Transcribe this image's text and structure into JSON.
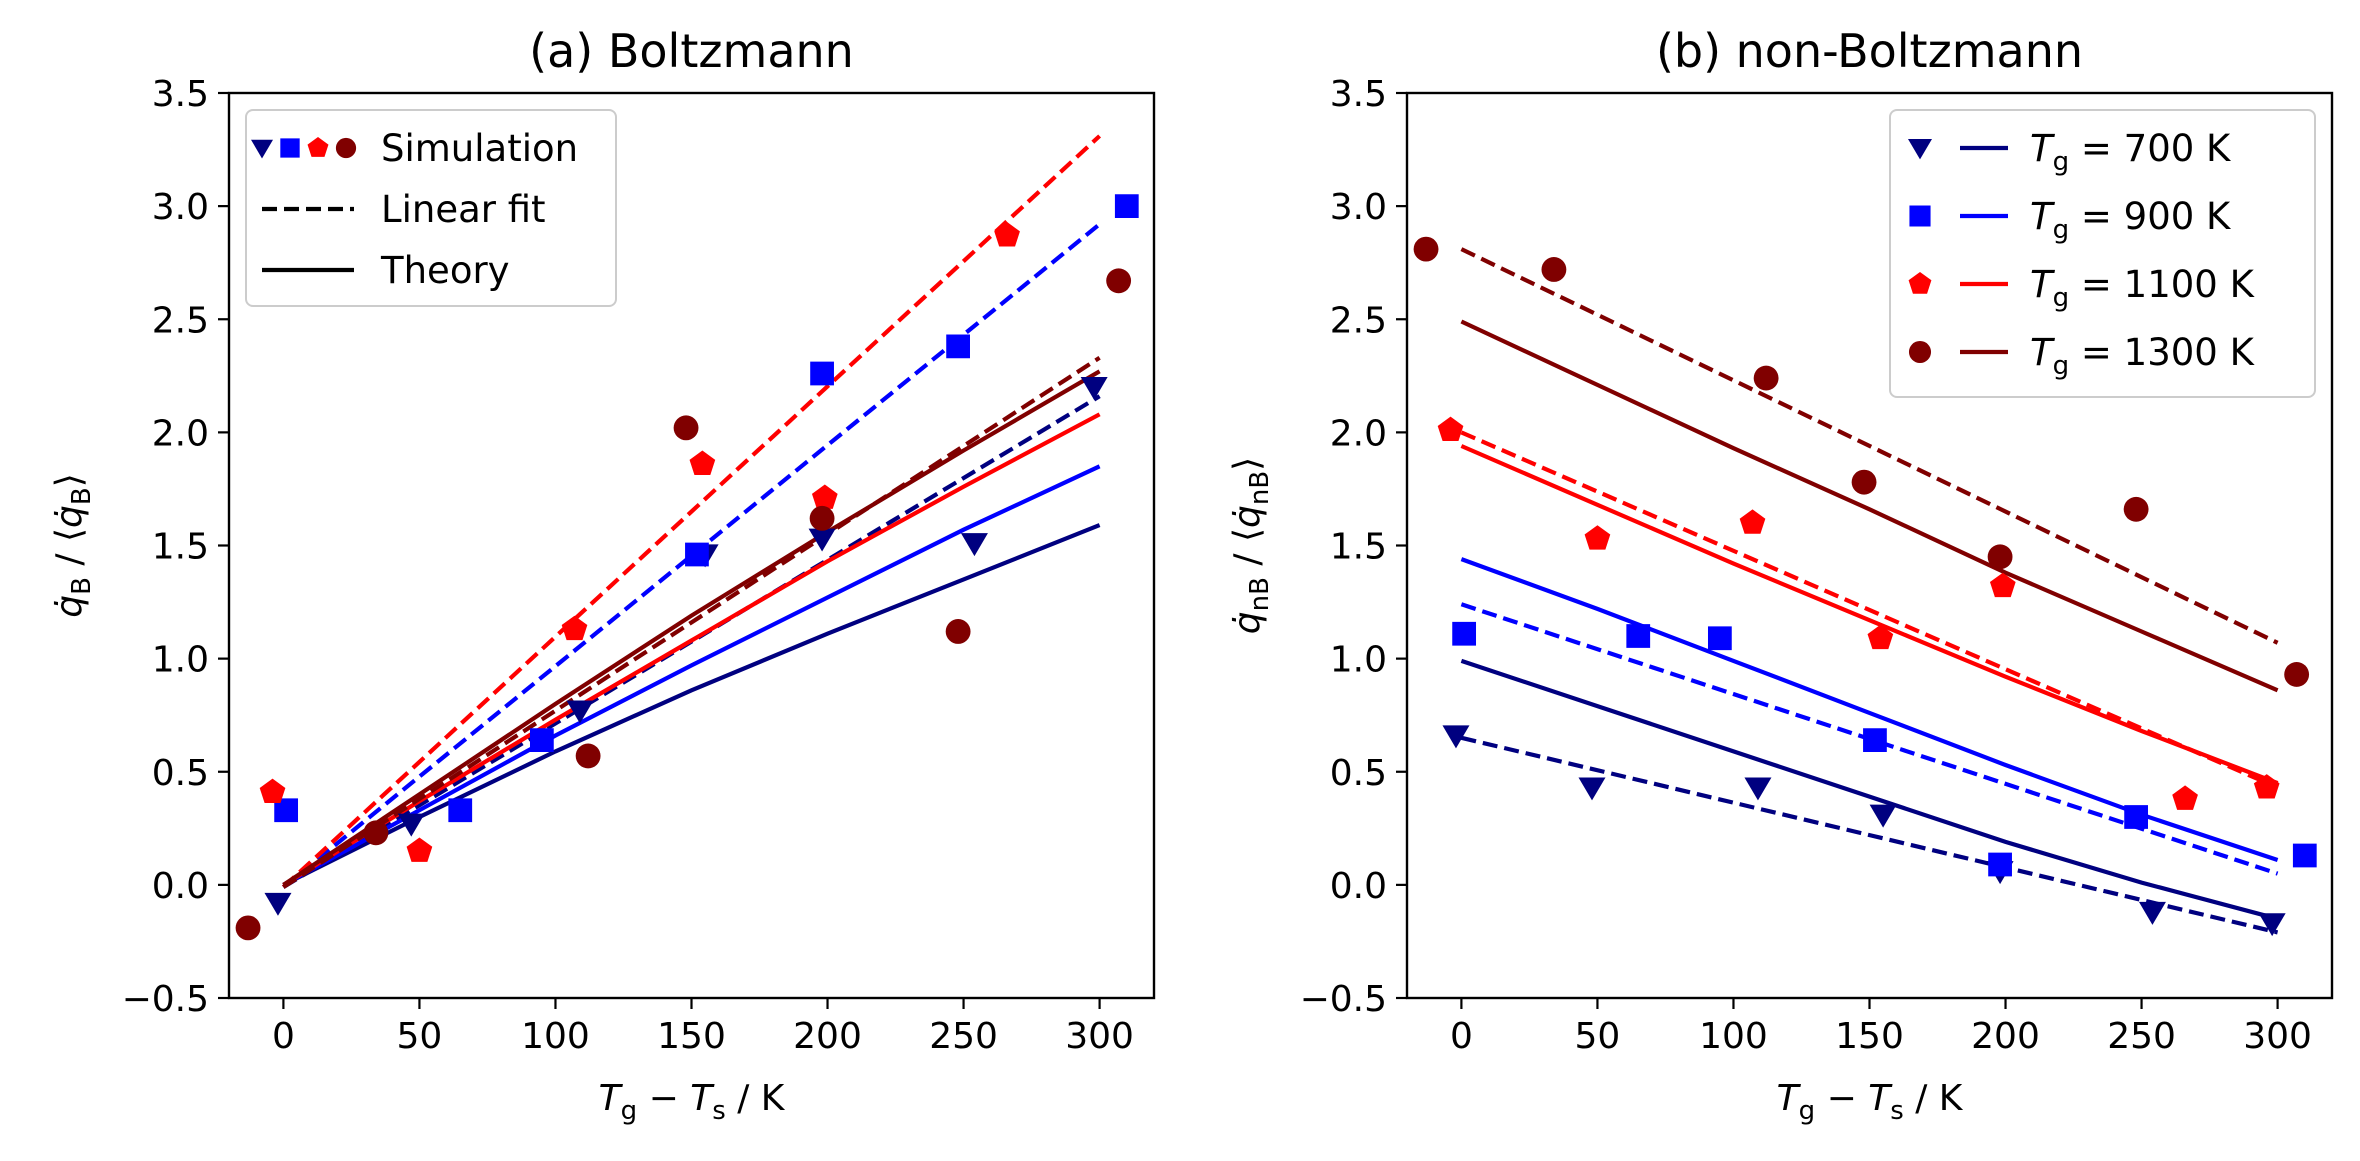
{
  "chart_data": [
    {
      "type": "scatter",
      "id": "boltzmann",
      "title": "(a) Boltzmann",
      "xlabel": "T_g − T_s / K",
      "xlabel_parts": {
        "main1": "T",
        "sub1": "g",
        "op": " − ",
        "main2": "T",
        "sub2": "s",
        "unit": " / K"
      },
      "ylabel_parts": {
        "main": "q̇",
        "sub": "B",
        "mid": " / ⟨",
        "main2": "q̇",
        "sub2": "B",
        "end": "⟩"
      },
      "xlim": [
        -20,
        320
      ],
      "ylim": [
        -0.5,
        3.5
      ],
      "xticks": [
        0,
        50,
        100,
        150,
        200,
        250,
        300
      ],
      "yticks": [
        -0.5,
        0.0,
        0.5,
        1.0,
        1.5,
        2.0,
        2.5,
        3.0,
        3.5
      ],
      "legend": {
        "placement": "top-left",
        "entries": [
          {
            "label": "Simulation",
            "style": "markers"
          },
          {
            "label": "Linear fit",
            "style": "dashed"
          },
          {
            "label": "Theory",
            "style": "solid"
          }
        ]
      },
      "series": [
        {
          "name": "T_g = 700 K",
          "color": "#000080",
          "marker": "triangle-down",
          "points": [
            [
              -2,
              -0.08
            ],
            [
              47,
              0.27
            ],
            [
              109,
              0.77
            ],
            [
              155,
              1.46
            ],
            [
              198,
              1.53
            ],
            [
              254,
              1.51
            ],
            [
              298,
              2.2
            ]
          ],
          "fit": [
            [
              0,
              -0.01
            ],
            [
              300,
              2.16
            ]
          ],
          "theory": [
            [
              0,
              0.0
            ],
            [
              50,
              0.3
            ],
            [
              100,
              0.59
            ],
            [
              150,
              0.86
            ],
            [
              200,
              1.11
            ],
            [
              250,
              1.35
            ],
            [
              300,
              1.59
            ]
          ]
        },
        {
          "name": "T_g = 900 K",
          "color": "#0000ff",
          "marker": "square",
          "points": [
            [
              1,
              0.33
            ],
            [
              65,
              0.33
            ],
            [
              95,
              0.64
            ],
            [
              152,
              1.46
            ],
            [
              198,
              2.26
            ],
            [
              248,
              2.38
            ],
            [
              310,
              3.0
            ]
          ],
          "fit": [
            [
              0,
              -0.01
            ],
            [
              300,
              2.92
            ]
          ],
          "theory": [
            [
              0,
              0.0
            ],
            [
              50,
              0.33
            ],
            [
              100,
              0.66
            ],
            [
              150,
              0.97
            ],
            [
              200,
              1.27
            ],
            [
              250,
              1.57
            ],
            [
              300,
              1.85
            ]
          ]
        },
        {
          "name": "T_g = 1100 K",
          "color": "#ff0000",
          "marker": "pentagon",
          "points": [
            [
              -4,
              0.41
            ],
            [
              50,
              0.15
            ],
            [
              107,
              1.13
            ],
            [
              154,
              1.86
            ],
            [
              199,
              1.71
            ],
            [
              266,
              2.87
            ]
          ],
          "fit": [
            [
              0,
              -0.01
            ],
            [
              300,
              3.31
            ]
          ],
          "theory": [
            [
              0,
              0.0
            ],
            [
              50,
              0.37
            ],
            [
              100,
              0.73
            ],
            [
              150,
              1.08
            ],
            [
              200,
              1.43
            ],
            [
              250,
              1.76
            ],
            [
              300,
              2.08
            ]
          ]
        },
        {
          "name": "T_g = 1300 K",
          "color": "#800000",
          "marker": "circle",
          "points": [
            [
              -13,
              -0.19
            ],
            [
              34,
              0.23
            ],
            [
              112,
              0.57
            ],
            [
              148,
              2.02
            ],
            [
              198,
              1.62
            ],
            [
              248,
              1.12
            ],
            [
              307,
              2.67
            ]
          ],
          "fit": [
            [
              0,
              -0.01
            ],
            [
              300,
              2.33
            ]
          ],
          "theory": [
            [
              0,
              0.0
            ],
            [
              50,
              0.4
            ],
            [
              100,
              0.8
            ],
            [
              150,
              1.19
            ],
            [
              200,
              1.56
            ],
            [
              250,
              1.92
            ],
            [
              300,
              2.27
            ]
          ]
        }
      ]
    },
    {
      "type": "scatter",
      "id": "non-boltzmann",
      "title": "(b) non-Boltzmann",
      "xlabel": "T_g − T_s / K",
      "xlabel_parts": {
        "main1": "T",
        "sub1": "g",
        "op": " − ",
        "main2": "T",
        "sub2": "s",
        "unit": " / K"
      },
      "ylabel_parts": {
        "main": "q̇",
        "sub": "nB",
        "mid": " / ⟨",
        "main2": "q̇",
        "sub2": "nB",
        "end": "⟩"
      },
      "xlim": [
        -20,
        320
      ],
      "ylim": [
        -0.5,
        3.5
      ],
      "xticks": [
        0,
        50,
        100,
        150,
        200,
        250,
        300
      ],
      "yticks": [
        -0.5,
        0.0,
        0.5,
        1.0,
        1.5,
        2.0,
        2.5,
        3.0,
        3.5
      ],
      "legend": {
        "placement": "top-right",
        "entries": [
          {
            "label_prefix": "T",
            "label_sub": "g",
            "label_suffix": "  =  700 K"
          },
          {
            "label_prefix": "T",
            "label_sub": "g",
            "label_suffix": "  =  900 K"
          },
          {
            "label_prefix": "T",
            "label_sub": "g",
            "label_suffix": "  =  1100 K"
          },
          {
            "label_prefix": "T",
            "label_sub": "g",
            "label_suffix": "  =  1300 K"
          }
        ]
      },
      "series": [
        {
          "name": "T_g = 700 K",
          "color": "#000080",
          "marker": "triangle-down",
          "points": [
            [
              -2,
              0.66
            ],
            [
              48,
              0.43
            ],
            [
              109,
              0.43
            ],
            [
              155,
              0.31
            ],
            [
              198,
              0.06
            ],
            [
              254,
              -0.12
            ],
            [
              298,
              -0.17
            ]
          ],
          "fit": [
            [
              0,
              0.65
            ],
            [
              300,
              -0.21
            ]
          ],
          "theory": [
            [
              0,
              0.99
            ],
            [
              50,
              0.79
            ],
            [
              100,
              0.59
            ],
            [
              150,
              0.39
            ],
            [
              200,
              0.19
            ],
            [
              250,
              0.01
            ],
            [
              300,
              -0.15
            ]
          ]
        },
        {
          "name": "T_g = 900 K",
          "color": "#0000ff",
          "marker": "square",
          "points": [
            [
              1,
              1.11
            ],
            [
              65,
              1.1
            ],
            [
              95,
              1.09
            ],
            [
              152,
              0.64
            ],
            [
              198,
              0.09
            ],
            [
              248,
              0.3
            ],
            [
              310,
              0.13
            ]
          ],
          "fit": [
            [
              0,
              1.24
            ],
            [
              300,
              0.05
            ]
          ],
          "theory": [
            [
              0,
              1.44
            ],
            [
              50,
              1.22
            ],
            [
              100,
              0.99
            ],
            [
              150,
              0.76
            ],
            [
              200,
              0.53
            ],
            [
              250,
              0.31
            ],
            [
              300,
              0.11
            ]
          ]
        },
        {
          "name": "T_g = 1100 K",
          "color": "#ff0000",
          "marker": "pentagon",
          "points": [
            [
              -4,
              2.01
            ],
            [
              50,
              1.53
            ],
            [
              107,
              1.6
            ],
            [
              154,
              1.09
            ],
            [
              199,
              1.32
            ],
            [
              266,
              0.38
            ],
            [
              296,
              0.43
            ]
          ],
          "fit": [
            [
              0,
              2.0
            ],
            [
              300,
              0.43
            ]
          ],
          "theory": [
            [
              0,
              1.94
            ],
            [
              50,
              1.68
            ],
            [
              100,
              1.42
            ],
            [
              150,
              1.17
            ],
            [
              200,
              0.92
            ],
            [
              250,
              0.68
            ],
            [
              300,
              0.45
            ]
          ]
        },
        {
          "name": "T_g = 1300 K",
          "color": "#800000",
          "marker": "circle",
          "points": [
            [
              -13,
              2.81
            ],
            [
              34,
              2.72
            ],
            [
              112,
              2.24
            ],
            [
              148,
              1.78
            ],
            [
              198,
              1.45
            ],
            [
              248,
              1.66
            ],
            [
              307,
              0.93
            ]
          ],
          "fit": [
            [
              0,
              2.81
            ],
            [
              300,
              1.07
            ]
          ],
          "theory": [
            [
              0,
              2.49
            ],
            [
              50,
              2.21
            ],
            [
              100,
              1.93
            ],
            [
              150,
              1.66
            ],
            [
              200,
              1.38
            ],
            [
              250,
              1.12
            ],
            [
              300,
              0.86
            ]
          ]
        }
      ]
    }
  ]
}
